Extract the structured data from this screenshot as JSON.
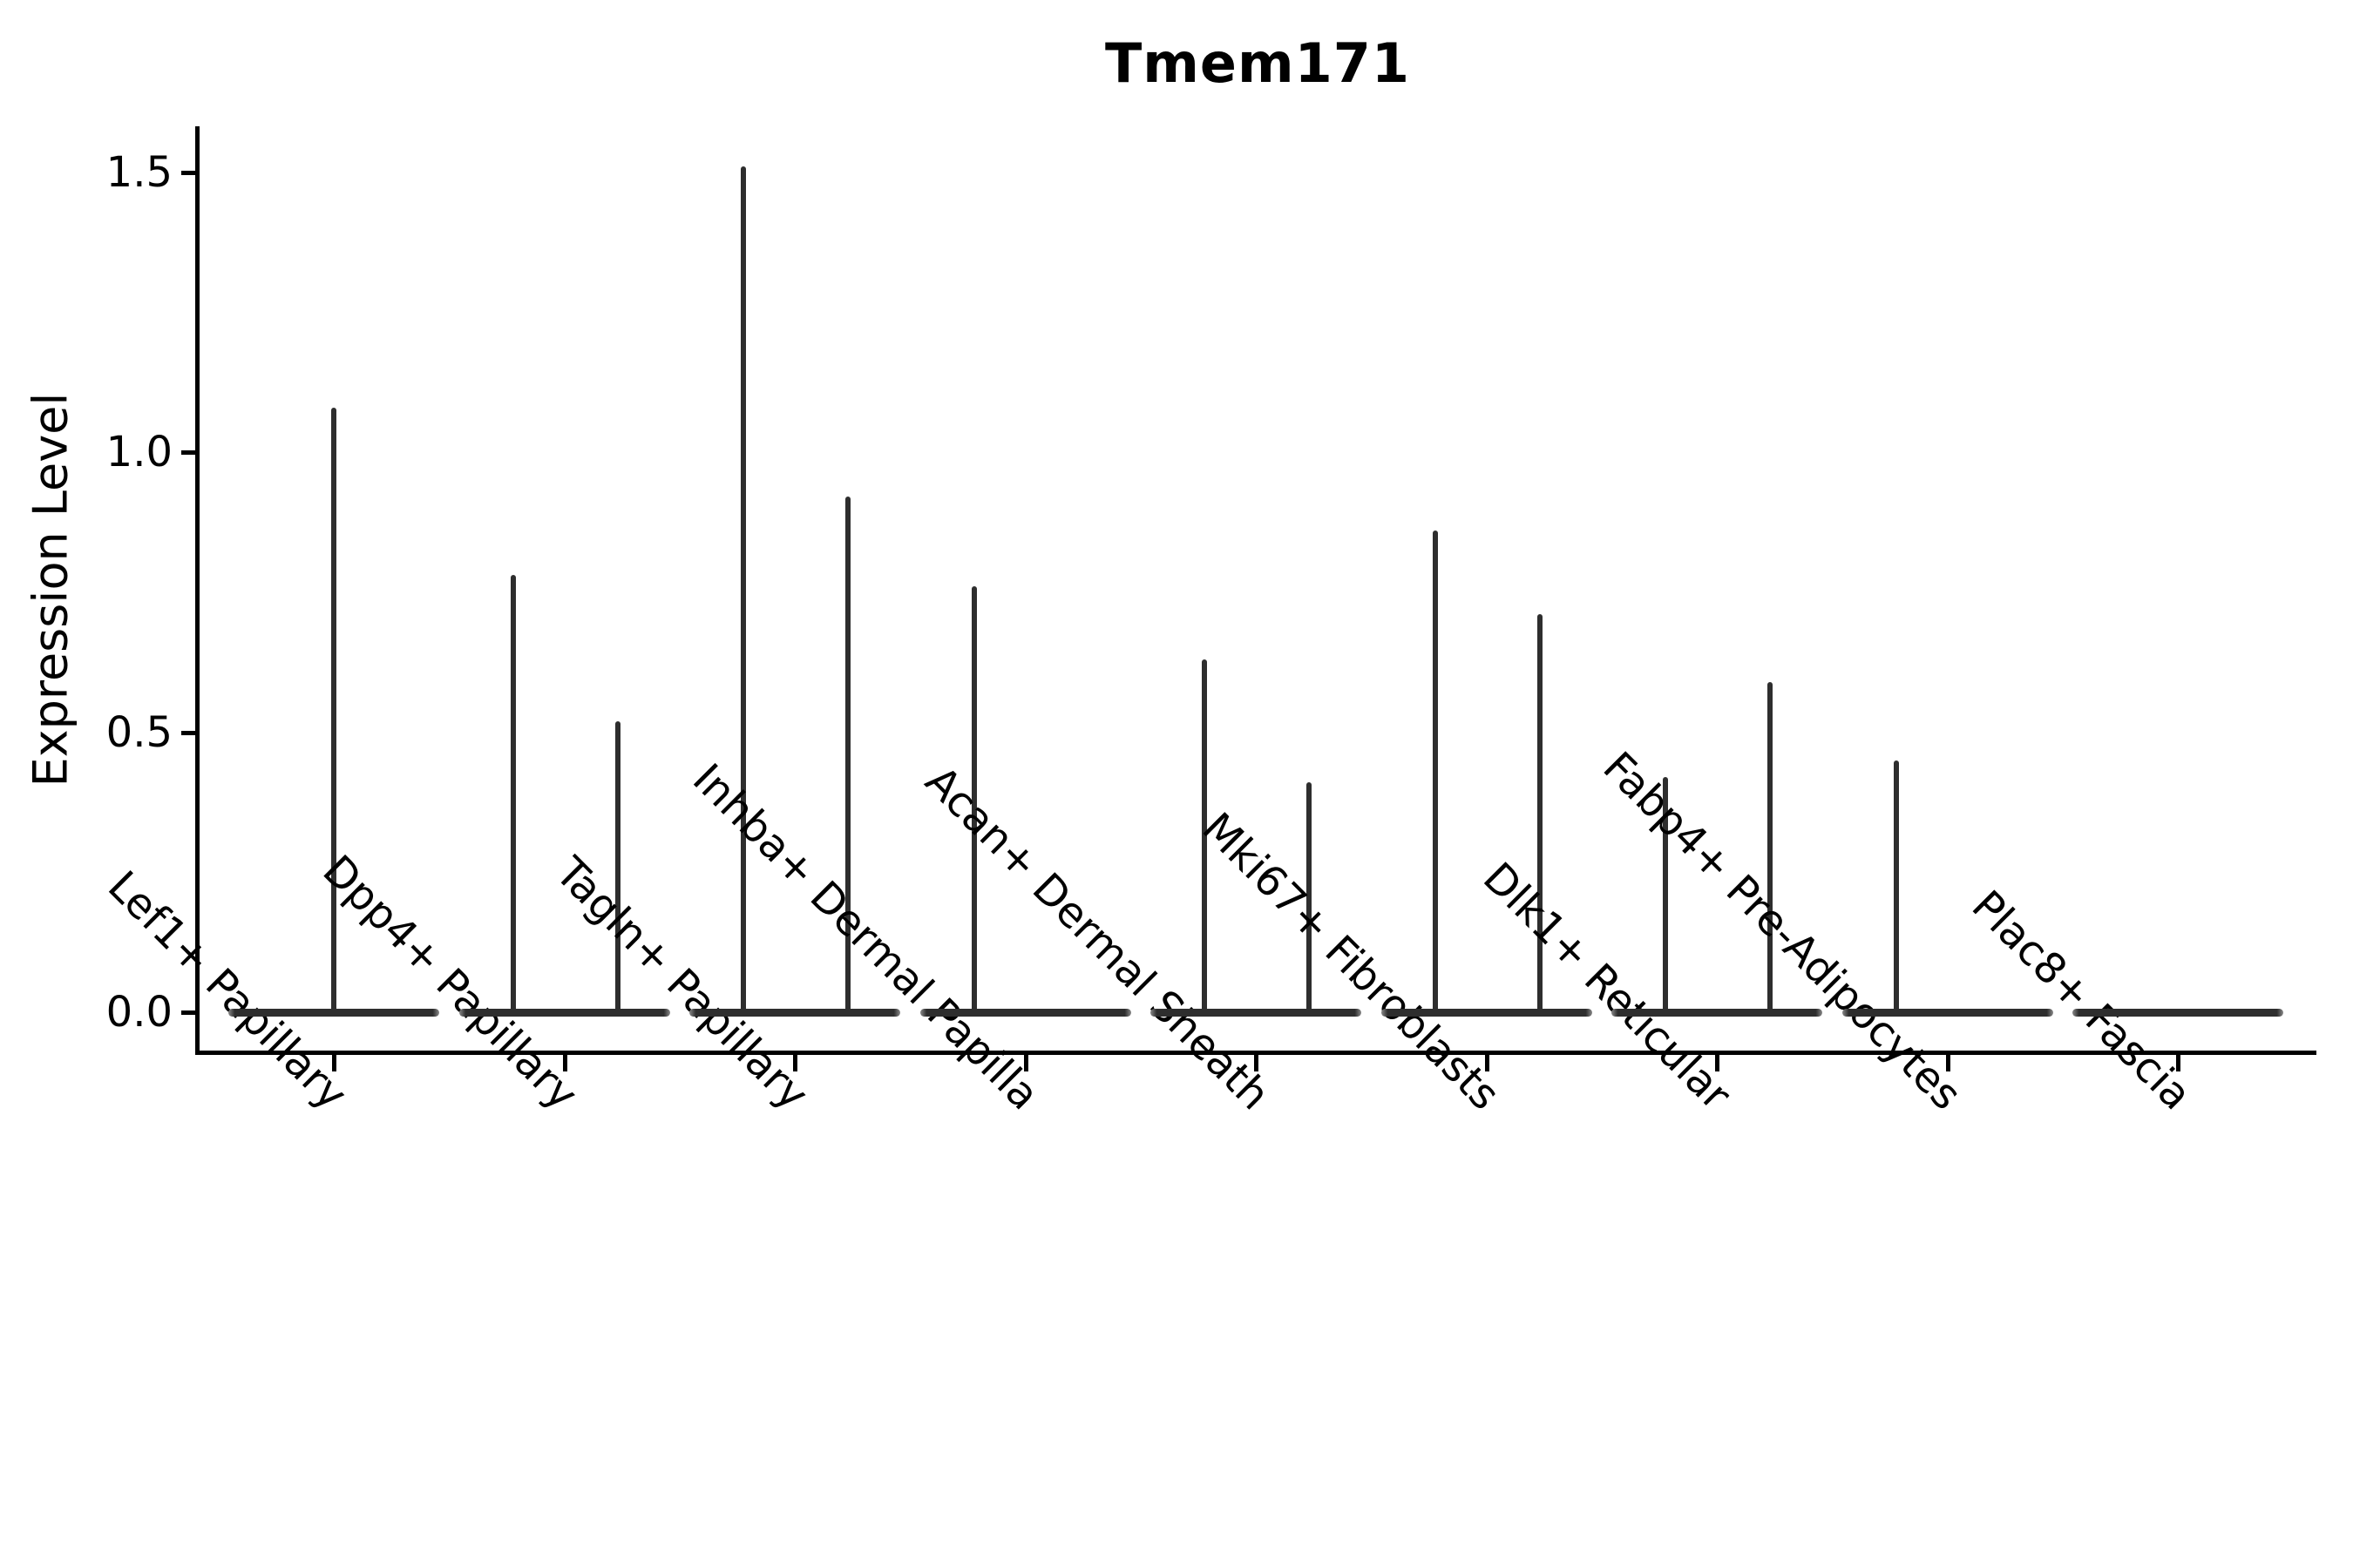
{
  "title": "Tmem171",
  "axes": {
    "y_label": "Expression Level",
    "y_tick_labels": [
      "0.0",
      "0.5",
      "1.0",
      "1.5"
    ],
    "x_tick_labels": [
      "Lef1+ Papillary",
      "Dpp4+ Papillary",
      "Tagln+ Papillary",
      "Inhba+ Dermal Papilla",
      "Acan+ Dermal Sheath",
      "Mki67+ Fibroblasts",
      "Dlk1+ Reticular",
      "Fabp4+ Pre-Adipocytes",
      "Plac8+ Fascia"
    ]
  },
  "colors": {
    "violin": "#2e2e2e",
    "axis": "#000000",
    "text": "#000000",
    "background": "#ffffff"
  },
  "chart_data": {
    "type": "violin",
    "title": "Tmem171",
    "xlabel": "",
    "ylabel": "Expression Level",
    "ylim": [
      0,
      1.55
    ],
    "y_ticks": [
      0.0,
      0.5,
      1.0,
      1.5
    ],
    "grid": false,
    "legend": "none",
    "categories": [
      "Lef1+ Papillary",
      "Dpp4+ Papillary",
      "Tagln+ Papillary",
      "Inhba+ Dermal Papilla",
      "Acan+ Dermal Sheath",
      "Mki67+ Fibroblasts",
      "Dlk1+ Reticular",
      "Fabp4+ Pre-Adipocytes",
      "Plac8+ Fascia"
    ],
    "description": "Seurat-style violin plot; violins collapsed to a flat bar at expression 0 with thin spikes rising to the maximum expression value; some categories show two side-by-side spikes, Plac8+ Fascia shows none",
    "violins": [
      {
        "category": "Lef1+ Papillary",
        "baseline_value": 0.0,
        "spikes": [
          {
            "position": "center",
            "max_expression": 1.08
          }
        ]
      },
      {
        "category": "Dpp4+ Papillary",
        "baseline_value": 0.0,
        "spikes": [
          {
            "position": "left",
            "max_expression": 0.78
          },
          {
            "position": "right",
            "max_expression": 0.52
          }
        ]
      },
      {
        "category": "Tagln+ Papillary",
        "baseline_value": 0.0,
        "spikes": [
          {
            "position": "left",
            "max_expression": 1.51
          },
          {
            "position": "right",
            "max_expression": 0.92
          }
        ]
      },
      {
        "category": "Inhba+ Dermal Papilla",
        "baseline_value": 0.0,
        "spikes": [
          {
            "position": "left",
            "max_expression": 0.76
          }
        ]
      },
      {
        "category": "Acan+ Dermal Sheath",
        "baseline_value": 0.0,
        "spikes": [
          {
            "position": "left",
            "max_expression": 0.63
          },
          {
            "position": "right",
            "max_expression": 0.41
          }
        ]
      },
      {
        "category": "Mki67+ Fibroblasts",
        "baseline_value": 0.0,
        "spikes": [
          {
            "position": "left",
            "max_expression": 0.86
          },
          {
            "position": "right",
            "max_expression": 0.71
          }
        ]
      },
      {
        "category": "Dlk1+ Reticular",
        "baseline_value": 0.0,
        "spikes": [
          {
            "position": "left",
            "max_expression": 0.42
          },
          {
            "position": "right",
            "max_expression": 0.59
          }
        ]
      },
      {
        "category": "Fabp4+ Pre-Adipocytes",
        "baseline_value": 0.0,
        "spikes": [
          {
            "position": "left",
            "max_expression": 0.45
          }
        ]
      },
      {
        "category": "Plac8+ Fascia",
        "baseline_value": 0.0,
        "spikes": []
      }
    ]
  }
}
